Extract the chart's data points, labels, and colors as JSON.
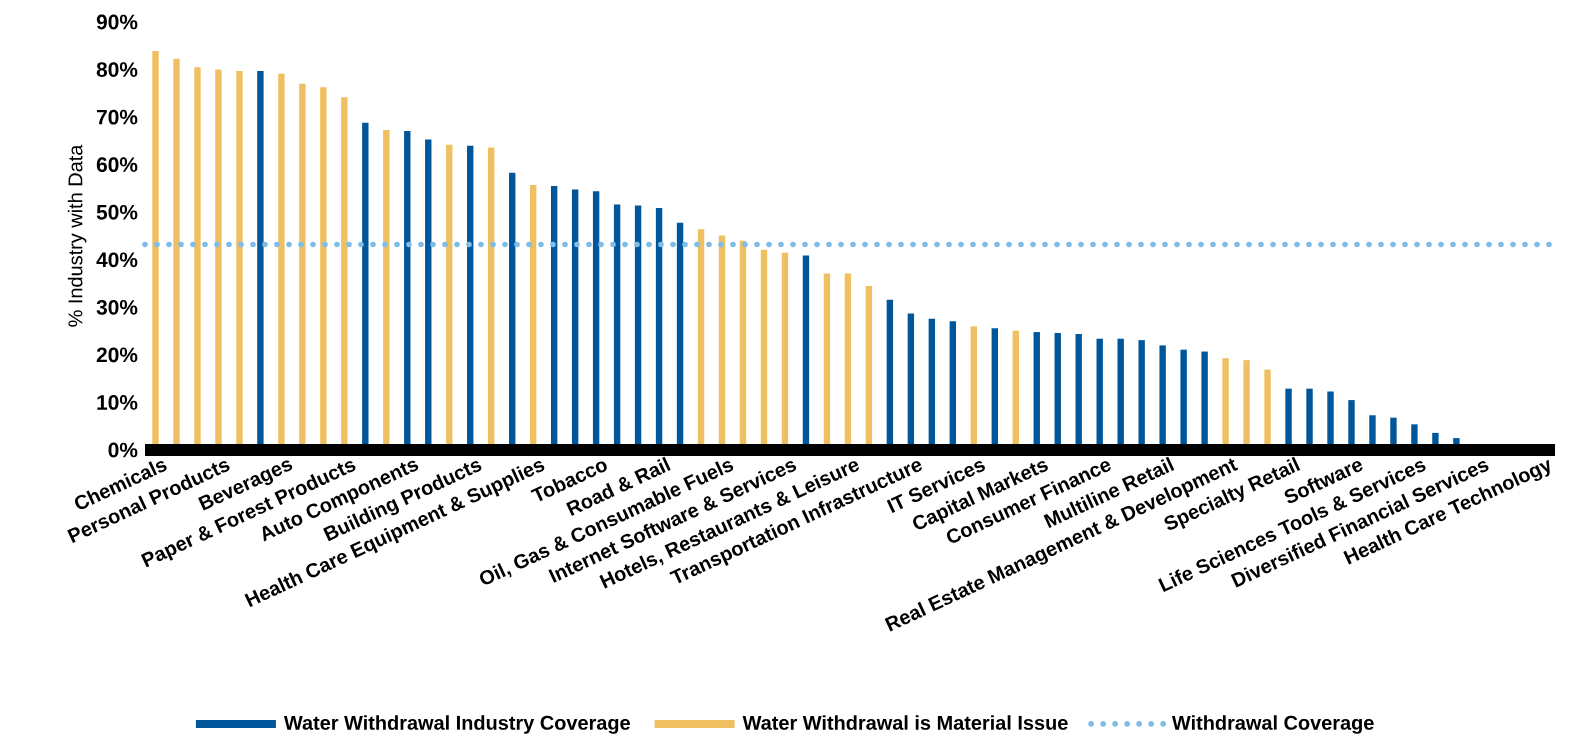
{
  "chart_data": {
    "type": "bar",
    "ylabel": "% Industry with Data",
    "categories": [
      "Chemicals",
      null,
      null,
      "Personal Products",
      null,
      null,
      "Beverages",
      null,
      null,
      "Paper & Forest Products",
      null,
      null,
      "Auto Components",
      null,
      null,
      "Building Products",
      null,
      null,
      "Health Care Equipment & Supplies",
      null,
      null,
      "Tobacco",
      null,
      null,
      "Road & Rail",
      null,
      null,
      "Oil, Gas & Consumable Fuels",
      null,
      null,
      "Internet Software & Services",
      null,
      null,
      "Hotels, Restaurants & Leisure",
      null,
      null,
      "Transportation Infrastructure",
      null,
      null,
      "IT Services",
      null,
      null,
      "Capital Markets",
      null,
      null,
      "Consumer Finance",
      null,
      null,
      "Multiline Retail",
      null,
      null,
      "Real Estate Management & Development",
      null,
      null,
      "Specialty Retail",
      null,
      null,
      "Software",
      null,
      null,
      "Life Sciences Tools & Services",
      null,
      null,
      "Diversified Financial Services",
      null,
      null,
      "Health Care Technology"
    ],
    "series": [
      {
        "name": "Water Withdrawal Industry Coverage",
        "color": "#00569a",
        "values": [
          null,
          null,
          null,
          null,
          null,
          79.7,
          null,
          null,
          null,
          null,
          68.8,
          null,
          67.1,
          65.3,
          null,
          64.0,
          null,
          58.3,
          null,
          55.5,
          54.8,
          54.4,
          51.6,
          51.4,
          50.9,
          47.8,
          null,
          null,
          null,
          null,
          null,
          40.9,
          null,
          null,
          null,
          31.6,
          28.7,
          27.6,
          27.1,
          null,
          25.6,
          null,
          24.8,
          24.6,
          24.4,
          23.4,
          23.4,
          23.1,
          22.0,
          21.1,
          20.7,
          null,
          null,
          null,
          12.9,
          12.9,
          12.3,
          10.5,
          7.3,
          6.8,
          5.4,
          3.6,
          2.5,
          0,
          0,
          0,
          0
        ]
      },
      {
        "name": "Water Withdrawal is Material Issue",
        "color": "#efc062",
        "values": [
          83.9,
          82.3,
          80.5,
          80.0,
          79.7,
          null,
          79.1,
          77.0,
          76.3,
          74.2,
          null,
          67.3,
          null,
          null,
          64.2,
          null,
          63.6,
          null,
          55.7,
          null,
          null,
          null,
          null,
          null,
          null,
          null,
          46.4,
          45.1,
          44.0,
          42.1,
          41.5,
          null,
          37.1,
          37.1,
          34.5,
          null,
          null,
          null,
          null,
          26.0,
          null,
          25.1,
          null,
          null,
          null,
          null,
          null,
          null,
          null,
          null,
          null,
          19.3,
          18.9,
          16.9,
          null,
          null,
          null,
          null,
          null,
          null,
          null,
          null,
          null,
          null,
          null,
          null,
          null
        ]
      }
    ],
    "ref_lines": [
      {
        "axis": "y",
        "value": 43.2,
        "label": "Withdrawal Coverage",
        "color": "#7fbde8",
        "line_style": "dotted"
      }
    ],
    "ylim": [
      0,
      90
    ],
    "yticks": [
      {
        "value": 0,
        "label": "0%"
      },
      {
        "value": 10,
        "label": "10%"
      },
      {
        "value": 20,
        "label": "20%"
      },
      {
        "value": 30,
        "label": "30%"
      },
      {
        "value": 40,
        "label": "40%"
      },
      {
        "value": 50,
        "label": "50%"
      },
      {
        "value": 60,
        "label": "60%"
      },
      {
        "value": 70,
        "label": "70%"
      },
      {
        "value": 80,
        "label": "80%"
      },
      {
        "value": 90,
        "label": "90%"
      }
    ],
    "legend": "bottom"
  }
}
